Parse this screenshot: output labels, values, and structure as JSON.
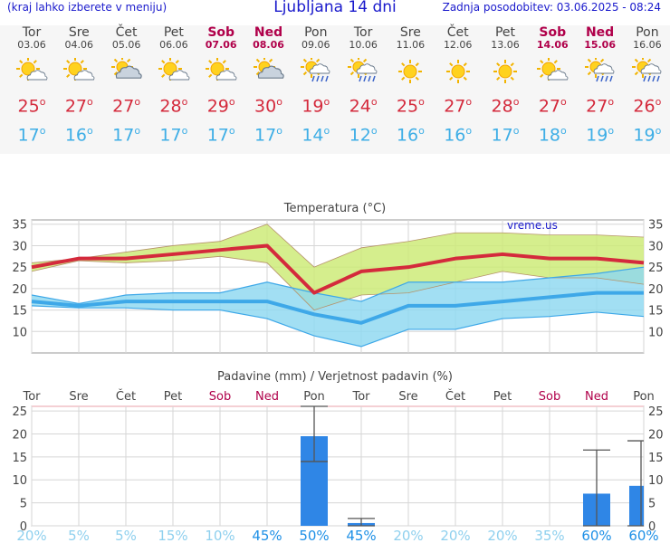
{
  "header": {
    "menu_hint": "(kraj lahko izberete v meniju)",
    "title": "Ljubljana 14 dni",
    "updated": "Zadnja posodobitev: 03.06.2025 - 08:24"
  },
  "days": [
    {
      "name": "Tor",
      "date": "03.06",
      "weekend": false,
      "icon": "sun-cloud-icon",
      "tmax": "25",
      "tmin": "17"
    },
    {
      "name": "Sre",
      "date": "04.06",
      "weekend": false,
      "icon": "sun-cloud-icon",
      "tmax": "27",
      "tmin": "16"
    },
    {
      "name": "Čet",
      "date": "05.06",
      "weekend": false,
      "icon": "cloudy-sun-icon",
      "tmax": "27",
      "tmin": "17"
    },
    {
      "name": "Pet",
      "date": "06.06",
      "weekend": false,
      "icon": "sun-cloud-icon",
      "tmax": "28",
      "tmin": "17"
    },
    {
      "name": "Sob",
      "date": "07.06",
      "weekend": true,
      "icon": "sun-cloud-icon",
      "tmax": "29",
      "tmin": "17"
    },
    {
      "name": "Ned",
      "date": "08.06",
      "weekend": true,
      "icon": "cloudy-sun-icon",
      "tmax": "30",
      "tmin": "17"
    },
    {
      "name": "Pon",
      "date": "09.06",
      "weekend": false,
      "icon": "sun-rain-icon",
      "tmax": "19",
      "tmin": "14"
    },
    {
      "name": "Tor",
      "date": "10.06",
      "weekend": false,
      "icon": "sun-rain-icon",
      "tmax": "24",
      "tmin": "12"
    },
    {
      "name": "Sre",
      "date": "11.06",
      "weekend": false,
      "icon": "sun-icon",
      "tmax": "25",
      "tmin": "16"
    },
    {
      "name": "Čet",
      "date": "12.06",
      "weekend": false,
      "icon": "sun-icon",
      "tmax": "27",
      "tmin": "16"
    },
    {
      "name": "Pet",
      "date": "13.06",
      "weekend": false,
      "icon": "sun-icon",
      "tmax": "28",
      "tmin": "17"
    },
    {
      "name": "Sob",
      "date": "14.06",
      "weekend": true,
      "icon": "sun-cloud-icon",
      "tmax": "27",
      "tmin": "18"
    },
    {
      "name": "Ned",
      "date": "15.06",
      "weekend": true,
      "icon": "sun-rain-icon",
      "tmax": "27",
      "tmin": "19"
    },
    {
      "name": "Pon",
      "date": "16.06",
      "weekend": false,
      "icon": "sun-rain-icon",
      "tmax": "26",
      "tmin": "19"
    }
  ],
  "colors": {
    "max_line": "#d42a3c",
    "min_line": "#3ea8e8",
    "max_band": "#ccea74",
    "min_band": "#8ed8f0",
    "precip_bar": "#2f86e6",
    "weekend": "#b0004a",
    "prob_low": "#8fd0ee",
    "prob_high": "#1e90e6"
  },
  "chart_data": [
    {
      "type": "line",
      "title": "Temperatura (°C)",
      "watermark": "vreme.us",
      "categories": [
        "03.06",
        "04.06",
        "05.06",
        "06.06",
        "07.06",
        "08.06",
        "09.06",
        "10.06",
        "11.06",
        "12.06",
        "13.06",
        "14.06",
        "15.06",
        "16.06"
      ],
      "ylim": [
        5,
        36
      ],
      "yticks": [
        10,
        15,
        20,
        25,
        30,
        35
      ],
      "grid": true,
      "series": [
        {
          "values": [
            25,
            27,
            27,
            28,
            29,
            30,
            19,
            24,
            25,
            27,
            28,
            27,
            27,
            26
          ]
        },
        {
          "values": [
            26,
            27,
            28.5,
            30,
            31,
            35,
            25,
            29.5,
            31,
            33,
            33,
            32.5,
            32.5,
            32
          ]
        },
        {
          "values": [
            24,
            26.5,
            26,
            26.5,
            27.5,
            26,
            15,
            18.5,
            19,
            21.5,
            24,
            22.5,
            22.5,
            21
          ]
        },
        {
          "values": [
            17,
            16,
            17,
            17,
            17,
            17,
            14,
            12,
            16,
            16,
            17,
            18,
            19,
            19
          ]
        },
        {
          "values": [
            18.5,
            16.5,
            18.5,
            19,
            19,
            21.5,
            19,
            17,
            21.5,
            21.5,
            21.5,
            22.5,
            23.5,
            25
          ]
        },
        {
          "values": [
            16,
            15.5,
            15.5,
            15,
            15,
            13,
            9,
            6.5,
            10.5,
            10.5,
            13,
            13.5,
            14.5,
            13.5
          ]
        }
      ]
    },
    {
      "type": "bar",
      "title": "Padavine (mm) / Verjetnost padavin (%)",
      "categories": [
        "Tor",
        "Sre",
        "Čet",
        "Pet",
        "Sob",
        "Ned",
        "Pon",
        "Tor",
        "Sre",
        "Čet",
        "Pet",
        "Sob",
        "Ned",
        "Pon"
      ],
      "ylim": [
        0,
        26
      ],
      "yticks": [
        0,
        5,
        10,
        15,
        20,
        25
      ],
      "values": [
        0,
        0,
        0,
        0,
        0,
        0,
        19.5,
        0.6,
        0,
        0,
        0,
        0,
        7,
        8.7
      ],
      "error_low": [
        null,
        null,
        null,
        null,
        null,
        null,
        14,
        0,
        null,
        null,
        null,
        null,
        0,
        0
      ],
      "error_high": [
        null,
        null,
        null,
        null,
        null,
        null,
        26,
        1.6,
        null,
        null,
        null,
        null,
        16.5,
        18.5
      ],
      "probability": [
        "20%",
        "5%",
        "5%",
        "15%",
        "10%",
        "45%",
        "50%",
        "45%",
        "20%",
        "20%",
        "20%",
        "35%",
        "60%",
        "60%"
      ],
      "probability_values": [
        20,
        5,
        5,
        15,
        10,
        45,
        50,
        45,
        20,
        20,
        20,
        35,
        60,
        60
      ]
    }
  ]
}
